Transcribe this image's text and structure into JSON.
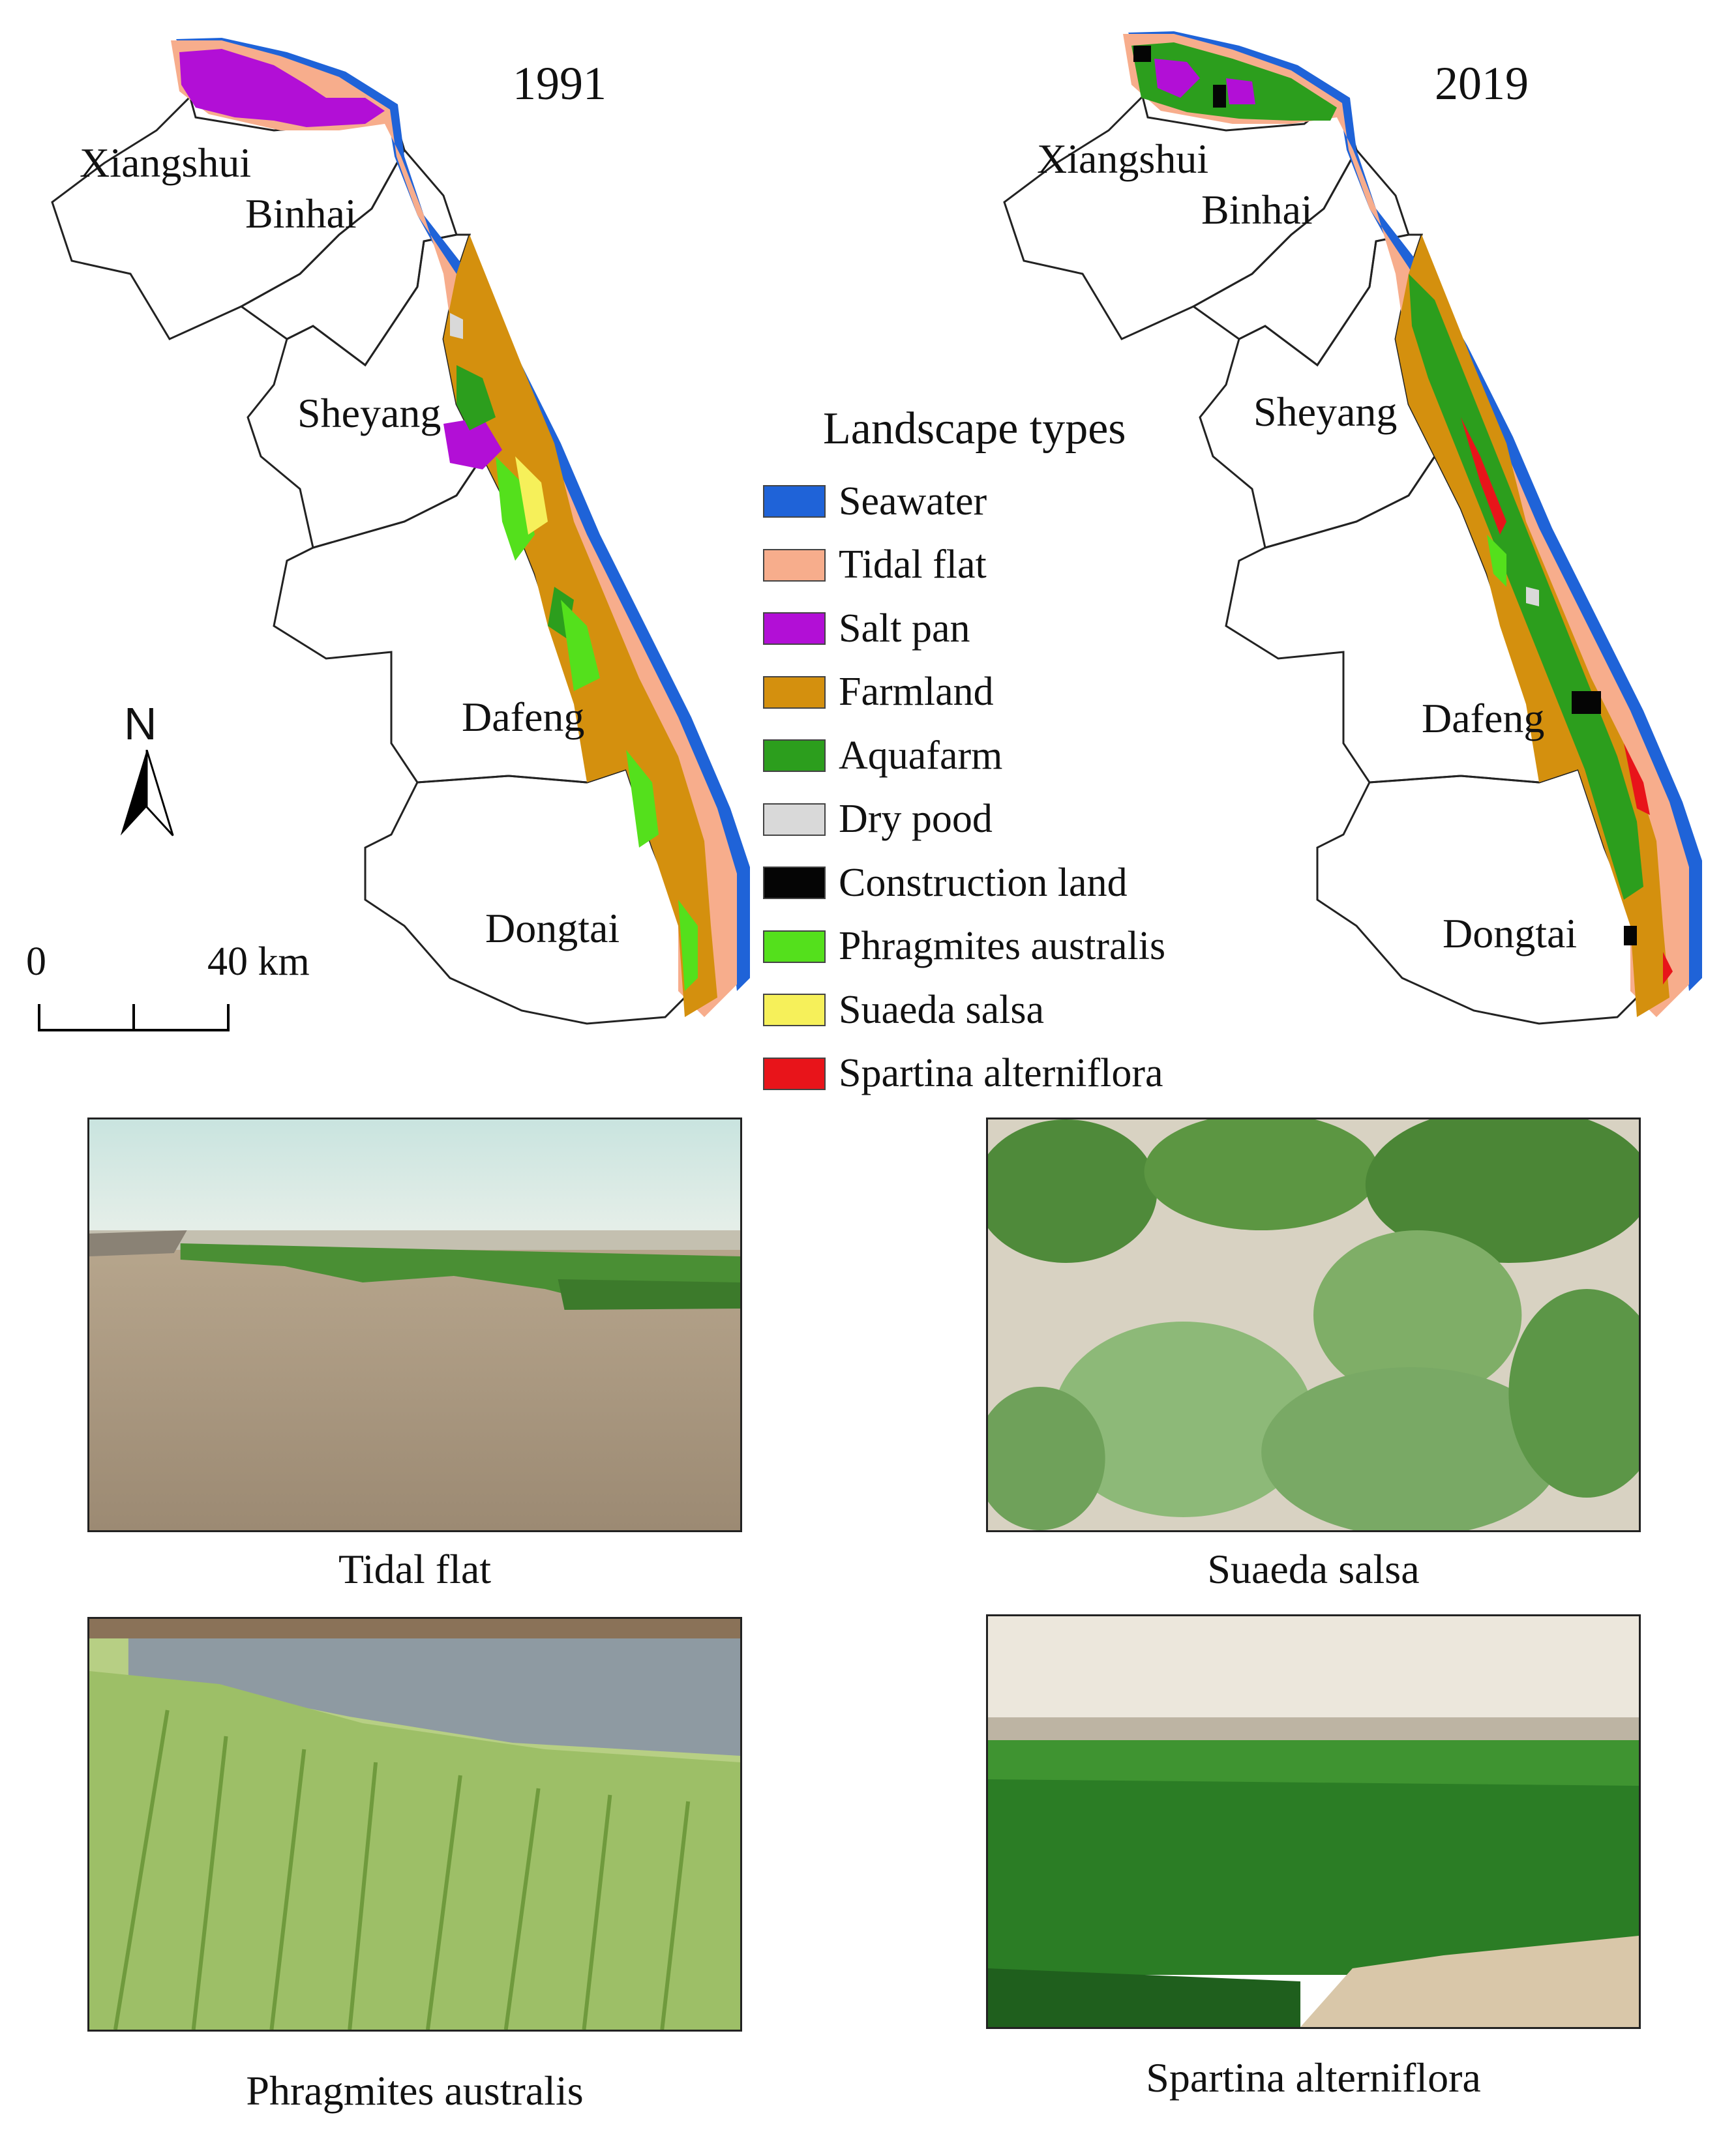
{
  "maps": {
    "left_year": "1991",
    "right_year": "2019",
    "counties": [
      "Xiangshui",
      "Binhai",
      "Sheyang",
      "Dafeng",
      "Dongtai"
    ]
  },
  "north_arrow": {
    "letter": "N"
  },
  "scale_bar": {
    "start_label": "0",
    "end_label": "40 km"
  },
  "legend": {
    "title": "Landscape types",
    "items": [
      {
        "label": "Seawater",
        "color": "#1f63d8"
      },
      {
        "label": "Tidal flat",
        "color": "#f7ad8c"
      },
      {
        "label": "Salt pan",
        "color": "#b20fd6"
      },
      {
        "label": "Farmland",
        "color": "#d4900e"
      },
      {
        "label": "Aquafarm",
        "color": "#2c9e1d"
      },
      {
        "label": "Dry pood",
        "color": "#d9d9d9"
      },
      {
        "label": "Construction land",
        "color": "#050505"
      },
      {
        "label": "Phragmites australis",
        "color": "#54e01c"
      },
      {
        "label": "Suaeda salsa",
        "color": "#f6f05a"
      },
      {
        "label": "Spartina alterniflora",
        "color": "#e8141a"
      }
    ]
  },
  "photos": [
    {
      "caption": "Tidal flat"
    },
    {
      "caption": "Suaeda salsa"
    },
    {
      "caption": "Phragmites australis"
    },
    {
      "caption": "Spartina alterniflora"
    }
  ]
}
